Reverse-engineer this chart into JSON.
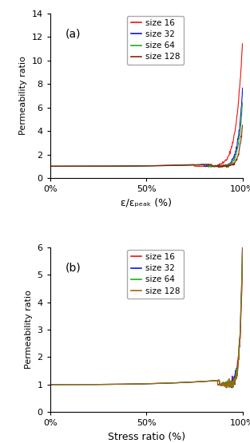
{
  "panel_a": {
    "label": "(a)",
    "xlabel": "ε/εₚₑₐₖ (%)",
    "ylabel": "Permeability ratio",
    "ylim": [
      0,
      14
    ],
    "yticks": [
      0,
      2,
      4,
      6,
      8,
      10,
      12,
      14
    ],
    "xlim": [
      0,
      1
    ],
    "xticks": [
      0,
      0.5,
      1.0
    ],
    "xticklabels": [
      "0%",
      "50%",
      "100%"
    ],
    "legend_entries": [
      "size 16",
      "size 32",
      "size 64",
      "size 128"
    ],
    "colors": [
      "#ee1111",
      "#1111ee",
      "#22aa22",
      "#8b2500"
    ],
    "peaks": [
      11.5,
      7.5,
      6.5,
      4.5
    ]
  },
  "panel_b": {
    "label": "(b)",
    "xlabel": "Stress ratio (%)",
    "ylabel": "Permeability ratio",
    "ylim": [
      0,
      6
    ],
    "yticks": [
      0,
      1,
      2,
      3,
      4,
      5,
      6
    ],
    "xlim": [
      0,
      1
    ],
    "xticks": [
      0,
      0.5,
      1.0
    ],
    "xticklabels": [
      "0%",
      "50%",
      "100%"
    ],
    "legend_entries": [
      "size 16",
      "size 32",
      "size 64",
      "size 128"
    ],
    "colors": [
      "#ee1111",
      "#1111ee",
      "#22aa22",
      "#aa6600"
    ],
    "peaks": [
      5.5,
      6.0,
      5.9,
      5.7
    ]
  }
}
